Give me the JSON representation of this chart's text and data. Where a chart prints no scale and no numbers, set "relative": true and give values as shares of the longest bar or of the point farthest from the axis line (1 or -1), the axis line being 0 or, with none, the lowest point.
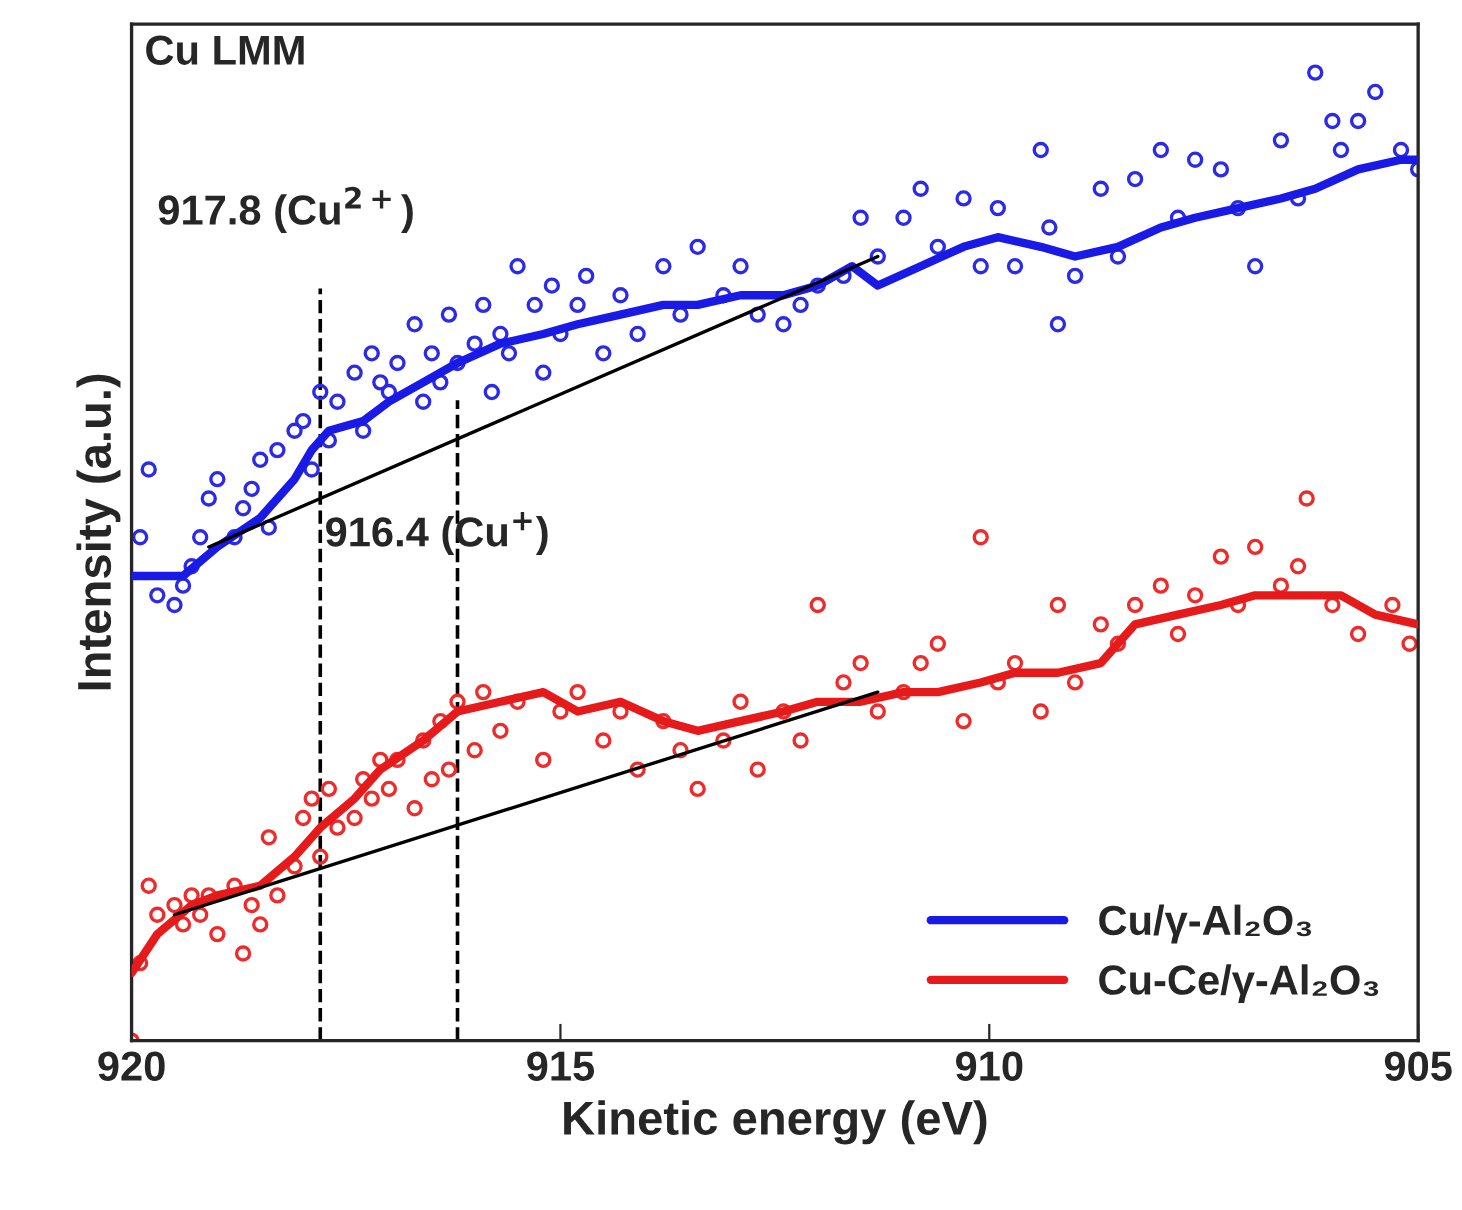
{
  "chart_data": {
    "type": "scatter",
    "relative": true,
    "xlabel": "Kinetic energy (eV)",
    "ylabel": "Intensity (a.u.)",
    "xlim": [
      920,
      905
    ],
    "xticks": [
      920,
      915,
      910,
      905
    ],
    "grid": false,
    "legend": "bottom right",
    "annotations": [
      "Cu LMM",
      "917.8 (Cu$^{2+}$)",
      "916.4 (Cu$^{+}$)"
    ],
    "ref_lines": [
      {
        "axis": "x",
        "value": 917.8,
        "color": "#000000",
        "line_style": "dashed"
      },
      {
        "axis": "x",
        "value": 916.2,
        "color": "#000000",
        "line_style": "dashed"
      }
    ],
    "series": [
      {
        "marker": "circle",
        "color": "#2a2ae8",
        "x": [
          919.9,
          919.8,
          919.7,
          919.5,
          919.4,
          919.3,
          919.2,
          919.1,
          919.0,
          918.8,
          918.7,
          918.6,
          918.5,
          918.4,
          918.3,
          918.1,
          918.0,
          917.9,
          917.8,
          917.7,
          917.6,
          917.4,
          917.3,
          917.2,
          917.1,
          917.0,
          916.9,
          916.7,
          916.6,
          916.5,
          916.4,
          916.3,
          916.2,
          916.0,
          915.9,
          915.8,
          915.7,
          915.6,
          915.5,
          915.3,
          915.2,
          915.1,
          915.0,
          914.8,
          914.7,
          914.5,
          914.3,
          914.1,
          913.8,
          913.6,
          913.4,
          913.1,
          912.9,
          912.7,
          912.4,
          912.2,
          912.0,
          911.7,
          911.5,
          911.3,
          911.0,
          910.8,
          910.6,
          910.3,
          910.1,
          909.9,
          909.7,
          909.4,
          909.3,
          909.2,
          909.0,
          908.7,
          908.5,
          908.3,
          908.0,
          907.8,
          907.6,
          907.3,
          907.1,
          906.9,
          906.6,
          906.4,
          906.2,
          906.0,
          905.9,
          905.7,
          905.5,
          905.2,
          905.0
        ],
        "values": [
          0.52,
          0.59,
          0.46,
          0.45,
          0.47,
          0.49,
          0.52,
          0.56,
          0.58,
          0.52,
          0.55,
          0.57,
          0.6,
          0.53,
          0.61,
          0.63,
          0.64,
          0.59,
          0.67,
          0.62,
          0.66,
          0.69,
          0.63,
          0.71,
          0.68,
          0.67,
          0.7,
          0.74,
          0.66,
          0.71,
          0.68,
          0.75,
          0.7,
          0.72,
          0.76,
          0.67,
          0.73,
          0.71,
          0.8,
          0.76,
          0.69,
          0.78,
          0.73,
          0.76,
          0.79,
          0.71,
          0.77,
          0.73,
          0.8,
          0.75,
          0.82,
          0.77,
          0.8,
          0.75,
          0.74,
          0.76,
          0.78,
          0.79,
          0.85,
          0.81,
          0.85,
          0.88,
          0.82,
          0.87,
          0.8,
          0.86,
          0.8,
          0.92,
          0.84,
          0.74,
          0.79,
          0.88,
          0.81,
          0.89,
          0.92,
          0.85,
          0.91,
          0.9,
          0.86,
          0.8,
          0.93,
          0.87,
          1.0,
          0.95,
          0.92,
          0.95,
          0.98,
          0.92,
          0.9
        ]
      },
      {
        "type": "line",
        "name": "Cu/γ-Al₂O₃",
        "marker": "none",
        "line_style": "solid",
        "color": "#1a1ae6",
        "x": [
          920.0,
          919.4,
          919.0,
          918.5,
          918.1,
          917.9,
          917.7,
          917.3,
          917.0,
          916.6,
          916.2,
          915.7,
          915.2,
          914.8,
          914.3,
          913.8,
          913.4,
          912.9,
          912.4,
          912.0,
          911.6,
          911.3,
          910.8,
          910.3,
          909.9,
          909.4,
          909.0,
          908.5,
          908.0,
          907.6,
          907.1,
          906.6,
          906.2,
          905.7,
          905.2,
          905.0
        ],
        "values": [
          0.48,
          0.48,
          0.51,
          0.54,
          0.58,
          0.61,
          0.63,
          0.64,
          0.66,
          0.68,
          0.7,
          0.72,
          0.73,
          0.74,
          0.75,
          0.76,
          0.76,
          0.77,
          0.77,
          0.78,
          0.8,
          0.78,
          0.8,
          0.82,
          0.83,
          0.82,
          0.81,
          0.82,
          0.84,
          0.85,
          0.86,
          0.87,
          0.88,
          0.9,
          0.91,
          0.91
        ]
      },
      {
        "type": "line",
        "marker": "none",
        "line_style": "solid",
        "color": "#000000",
        "x": [
          919.1,
          911.3
        ],
        "values": [
          0.51,
          0.81
        ]
      },
      {
        "marker": "circle",
        "color": "#ee2a2a",
        "x": [
          920.0,
          919.9,
          919.8,
          919.7,
          919.5,
          919.4,
          919.3,
          919.2,
          919.1,
          919.0,
          918.8,
          918.7,
          918.6,
          918.5,
          918.4,
          918.3,
          918.1,
          918.0,
          917.9,
          917.8,
          917.7,
          917.6,
          917.4,
          917.3,
          917.2,
          917.1,
          917.0,
          916.9,
          916.7,
          916.6,
          916.5,
          916.4,
          916.3,
          916.2,
          916.0,
          915.9,
          915.7,
          915.5,
          915.2,
          915.0,
          914.8,
          914.5,
          914.3,
          914.1,
          913.8,
          913.6,
          913.4,
          913.1,
          912.9,
          912.7,
          912.4,
          912.2,
          912.0,
          911.7,
          911.5,
          911.3,
          911.0,
          910.8,
          910.6,
          910.3,
          910.1,
          909.9,
          909.7,
          909.4,
          909.2,
          909.0,
          908.7,
          908.5,
          908.3,
          908.0,
          907.8,
          907.6,
          907.3,
          907.1,
          906.9,
          906.6,
          906.4,
          906.3,
          906.0,
          905.7,
          905.3,
          905.1
        ],
        "values": [
          0,
          0.08,
          0.16,
          0.13,
          0.14,
          0.12,
          0.15,
          0.13,
          0.15,
          0.11,
          0.16,
          0.09,
          0.14,
          0.12,
          0.21,
          0.15,
          0.18,
          0.23,
          0.25,
          0.19,
          0.26,
          0.22,
          0.23,
          0.27,
          0.25,
          0.29,
          0.26,
          0.29,
          0.24,
          0.31,
          0.27,
          0.33,
          0.28,
          0.35,
          0.3,
          0.36,
          0.32,
          0.35,
          0.29,
          0.34,
          0.36,
          0.31,
          0.34,
          0.28,
          0.33,
          0.3,
          0.26,
          0.31,
          0.35,
          0.28,
          0.34,
          0.31,
          0.45,
          0.37,
          0.39,
          0.34,
          0.36,
          0.39,
          0.41,
          0.33,
          0.52,
          0.37,
          0.39,
          0.34,
          0.45,
          0.37,
          0.43,
          0.41,
          0.45,
          0.47,
          0.42,
          0.46,
          0.5,
          0.45,
          0.51,
          0.47,
          0.49,
          0.56,
          0.45,
          0.42,
          0.45,
          0.41
        ]
      },
      {
        "type": "line",
        "name": "Cu-Ce/γ-Al₂O₃",
        "marker": "none",
        "line_style": "solid",
        "color": "#e61a1a",
        "x": [
          920.0,
          919.7,
          919.3,
          919.0,
          918.5,
          918.1,
          917.8,
          917.4,
          917.1,
          916.6,
          916.2,
          915.7,
          915.2,
          914.8,
          914.3,
          913.8,
          913.4,
          912.9,
          912.4,
          912.0,
          911.5,
          911.0,
          910.6,
          910.1,
          909.7,
          909.2,
          908.7,
          908.3,
          907.8,
          907.3,
          906.9,
          906.4,
          905.9,
          905.5,
          905.0
        ],
        "values": [
          0.07,
          0.11,
          0.14,
          0.15,
          0.16,
          0.19,
          0.22,
          0.25,
          0.28,
          0.31,
          0.34,
          0.35,
          0.36,
          0.34,
          0.35,
          0.33,
          0.32,
          0.33,
          0.34,
          0.35,
          0.35,
          0.36,
          0.36,
          0.37,
          0.38,
          0.38,
          0.39,
          0.43,
          0.44,
          0.45,
          0.46,
          0.46,
          0.46,
          0.44,
          0.43
        ]
      },
      {
        "type": "line",
        "marker": "none",
        "line_style": "solid",
        "color": "#000000",
        "x": [
          919.5,
          911.3
        ],
        "values": [
          0.13,
          0.36
        ]
      }
    ]
  }
}
